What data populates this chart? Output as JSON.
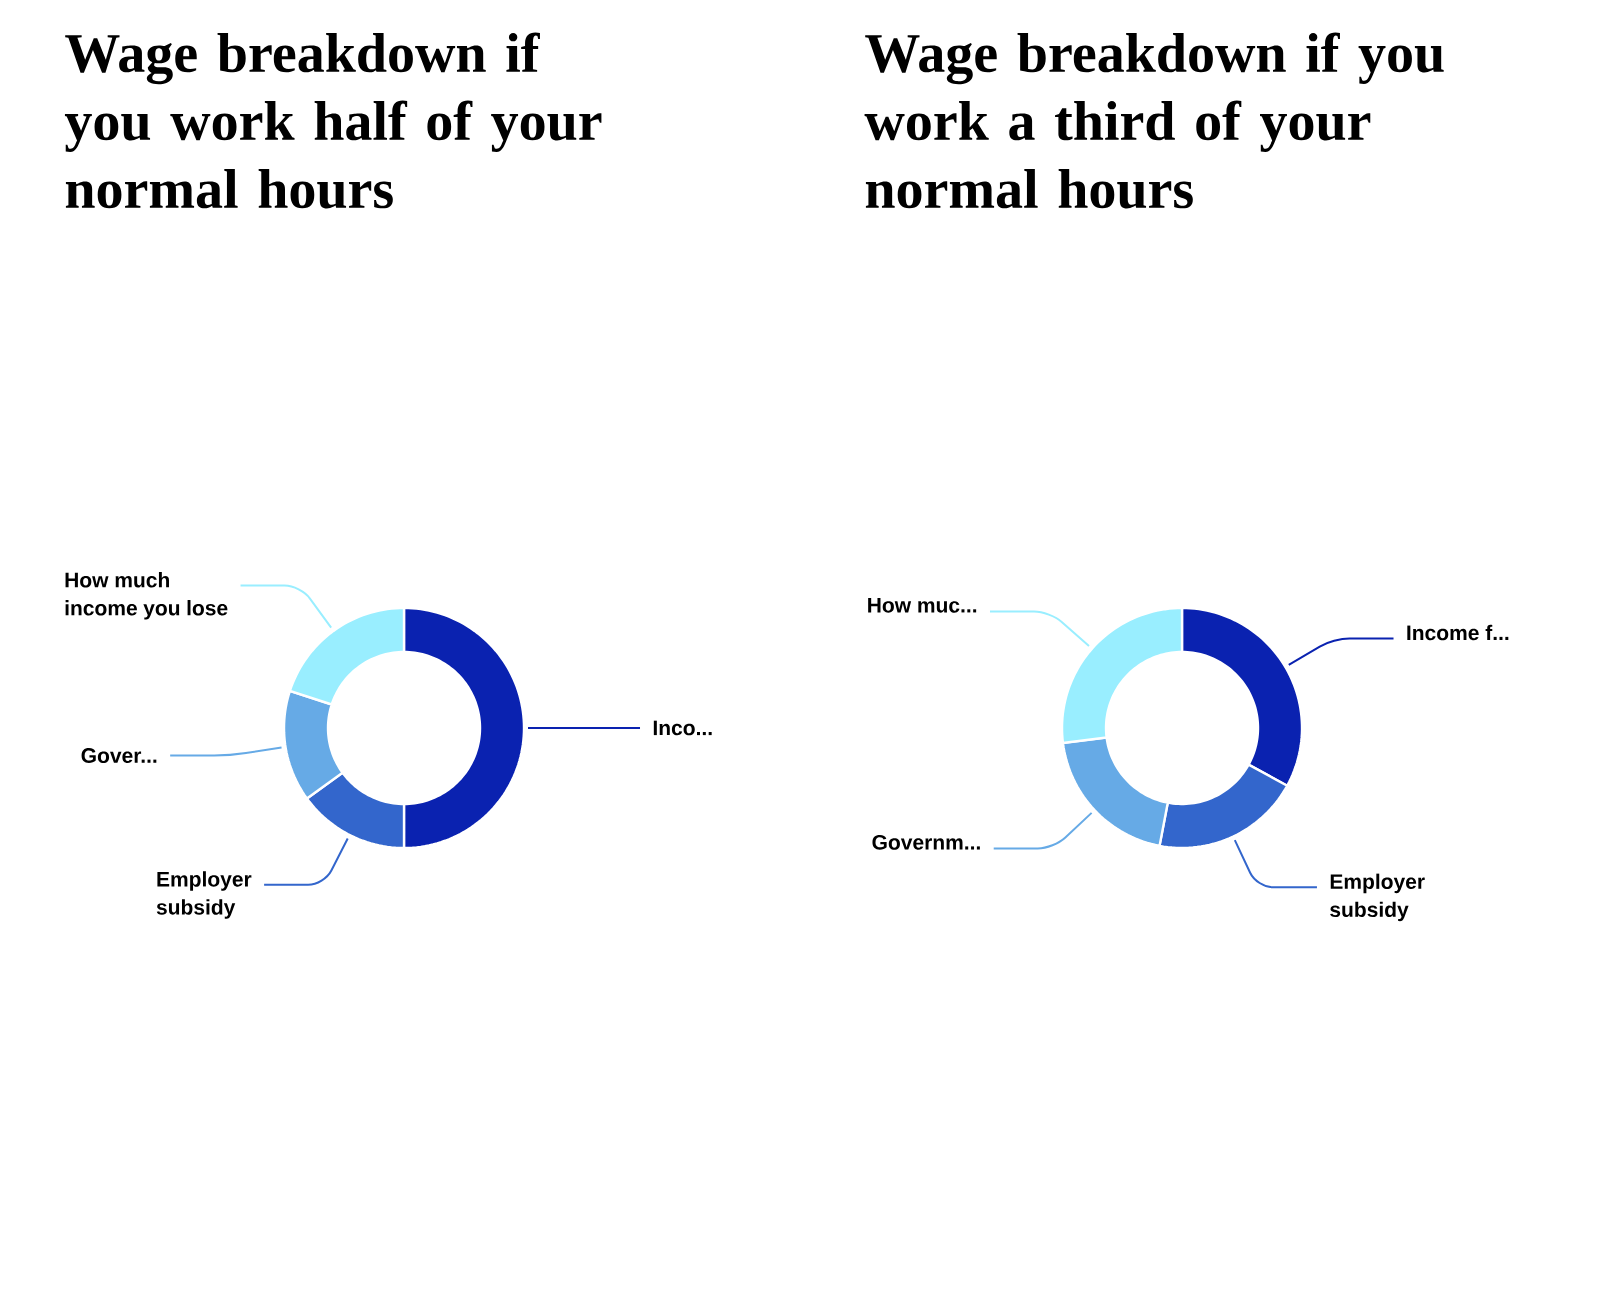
{
  "chart_data": [
    {
      "type": "donut",
      "title": "Wage breakdown if you work half of your normal hours",
      "categories": [
        "Inco...",
        "Employer subsidy",
        "Gover...",
        "How much income you lose"
      ],
      "values": [
        50,
        15,
        15,
        20
      ],
      "colors": [
        "#0a22b0",
        "#3366cc",
        "#66aae6",
        "#99eeff"
      ]
    },
    {
      "type": "donut",
      "title": "Wage breakdown if you work a third of your normal hours",
      "categories": [
        "Income f...",
        "Employer subsidy",
        "Governm...",
        "How muc..."
      ],
      "values": [
        33,
        20,
        20,
        27
      ],
      "colors": [
        "#0a22b0",
        "#3366cc",
        "#66aae6",
        "#99eeff"
      ]
    }
  ]
}
